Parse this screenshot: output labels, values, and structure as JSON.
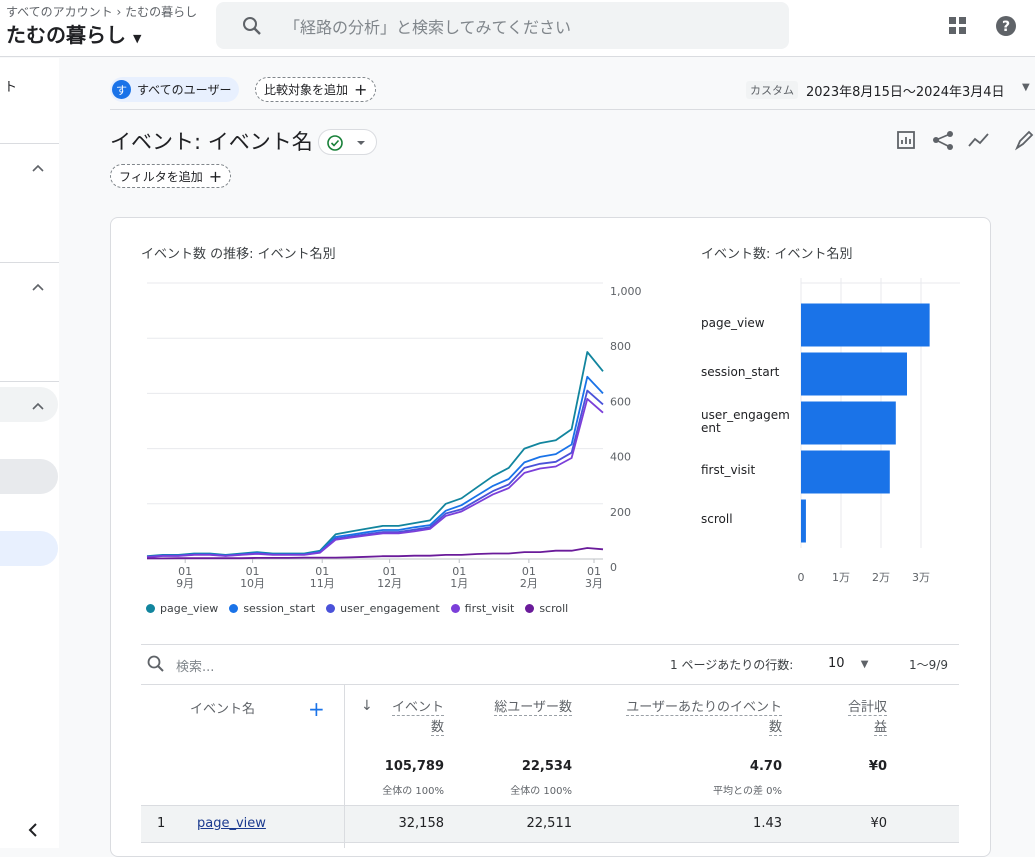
{
  "header": {
    "breadcrumb": [
      "すべてのアカウント",
      "たむの暮らし"
    ],
    "property": "たむの暮らし",
    "search_placeholder": "「経路の分析」と検索してみてください"
  },
  "sidebar": {
    "fragment": "ト"
  },
  "toolbar": {
    "segment_icon": "す",
    "segment": "すべてのユーザー",
    "compare": "比較対象を追加",
    "date_label": "カスタム",
    "date_range": "2023年8月15日～2024年3月4日"
  },
  "report": {
    "title": "イベント: イベント名",
    "filter": "フィルタを追加"
  },
  "chart_data": [
    {
      "type": "line",
      "title": "イベント数 の推移: イベント名別",
      "x": [
        0,
        7,
        14,
        21,
        28,
        35,
        42,
        49,
        56,
        63,
        70,
        77,
        84,
        91,
        98,
        105,
        112,
        119,
        126,
        133,
        140,
        147,
        154,
        161,
        168,
        175,
        182,
        189,
        196,
        203
      ],
      "xlim": [
        0,
        203
      ],
      "xticks": [
        {
          "value": 17,
          "label": [
            "01",
            "9月"
          ]
        },
        {
          "value": 47,
          "label": [
            "01",
            "10月"
          ]
        },
        {
          "value": 78,
          "label": [
            "01",
            "11月"
          ]
        },
        {
          "value": 108,
          "label": [
            "01",
            "12月"
          ]
        },
        {
          "value": 139,
          "label": [
            "01",
            "1月"
          ]
        },
        {
          "value": 170,
          "label": [
            "01",
            "2月"
          ]
        },
        {
          "value": 199,
          "label": [
            "01",
            "3月"
          ]
        }
      ],
      "ylim": [
        0,
        1000
      ],
      "yticks": [
        0,
        200,
        400,
        600,
        800,
        {
          "value": 1000,
          "label": "1,000"
        }
      ],
      "grid": true,
      "series": [
        {
          "name": "page_view",
          "color": "#12859e",
          "values": [
            10,
            15,
            15,
            20,
            20,
            15,
            20,
            25,
            20,
            20,
            20,
            30,
            90,
            100,
            110,
            120,
            120,
            130,
            140,
            200,
            220,
            260,
            300,
            330,
            400,
            420,
            430,
            470,
            750,
            680
          ]
        },
        {
          "name": "session_start",
          "color": "#1a73e8",
          "values": [
            8,
            13,
            13,
            17,
            17,
            13,
            17,
            22,
            17,
            17,
            17,
            26,
            80,
            88,
            97,
            105,
            105,
            115,
            123,
            175,
            195,
            230,
            265,
            290,
            350,
            370,
            380,
            415,
            660,
            600
          ]
        },
        {
          "name": "user_engagement",
          "color": "#4a52d9",
          "values": [
            8,
            12,
            12,
            16,
            16,
            12,
            16,
            20,
            16,
            16,
            16,
            24,
            74,
            82,
            90,
            98,
            98,
            106,
            115,
            165,
            180,
            213,
            246,
            270,
            330,
            345,
            352,
            385,
            610,
            560
          ]
        },
        {
          "name": "first_visit",
          "color": "#7b3fd9",
          "values": [
            7,
            11,
            11,
            15,
            15,
            11,
            15,
            19,
            15,
            15,
            15,
            23,
            70,
            78,
            86,
            93,
            93,
            100,
            109,
            156,
            172,
            203,
            234,
            257,
            312,
            328,
            335,
            366,
            580,
            530
          ]
        },
        {
          "name": "scroll",
          "color": "#6a1b9a",
          "values": [
            2,
            2,
            3,
            3,
            3,
            3,
            3,
            4,
            4,
            4,
            5,
            5,
            5,
            6,
            8,
            10,
            10,
            12,
            12,
            15,
            15,
            18,
            20,
            20,
            25,
            25,
            30,
            30,
            40,
            35
          ]
        }
      ]
    },
    {
      "type": "hbar",
      "title": "イベント数: イベント名別",
      "categories": [
        "page_view",
        "session_start",
        "user_engagement",
        "first_visit",
        "scroll"
      ],
      "values": [
        32158,
        26500,
        23700,
        22200,
        1231
      ],
      "color": "#1a73e8",
      "xlim": [
        0,
        35000
      ],
      "xticks": [
        0,
        {
          "value": 10000,
          "label": "1万"
        },
        {
          "value": 20000,
          "label": "2万"
        },
        {
          "value": 30000,
          "label": "3万"
        }
      ],
      "grid": true
    }
  ],
  "table": {
    "search": "検索...",
    "rows_per_page_label": "1 ページあたりの行数:",
    "rows_per_page": "10",
    "range": "1～9/9",
    "columns": [
      "イベント名",
      "イベント数",
      "総ユーザー数",
      "ユーザーあたりのイベント数",
      "合計収益"
    ],
    "totals": [
      "105,789",
      "22,534",
      "4.70",
      "¥0"
    ],
    "totals_notes": [
      "全体の 100%",
      "全体の 100%",
      "平均との差 0%"
    ],
    "rows": [
      [
        "1",
        "page_view",
        "32,158",
        "22,511",
        "1.43",
        "¥0"
      ]
    ]
  }
}
